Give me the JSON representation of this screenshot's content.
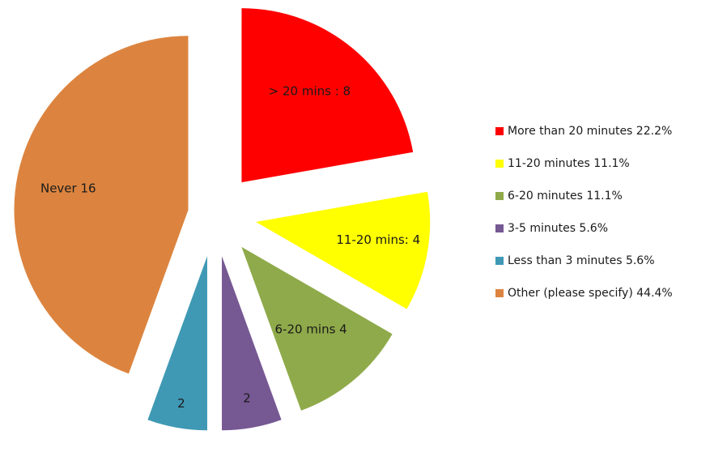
{
  "chart_data": {
    "type": "pie",
    "exploded": true,
    "legend_position": "right",
    "categories": [
      "More than 20 minutes",
      "11-20 minutes",
      "6-20 minutes",
      "3-5 minutes",
      "Less than 3 minutes",
      "Other (please specify)"
    ],
    "values": [
      8,
      4,
      4,
      2,
      2,
      16
    ],
    "percent_labels": [
      "22.2%",
      "11.1%",
      "11.1%",
      "5.6%",
      "5.6%",
      "44.4%"
    ],
    "slice_labels": [
      "> 20 mins : 8",
      "11-20 mins: 4",
      "6-20 mins 4",
      "2",
      "2",
      "Never 16"
    ],
    "legend_labels": [
      "More than 20 minutes 22.2%",
      "11-20 minutes 11.1%",
      "6-20 minutes 11.1%",
      "3-5 minutes 5.6%",
      "Less than 3 minutes 5.6%",
      "Other (please specify) 44.4%"
    ],
    "colors": [
      "#ff0000",
      "#ffff00",
      "#8faa4a",
      "#765893",
      "#3f99b4",
      "#dc843f"
    ]
  }
}
